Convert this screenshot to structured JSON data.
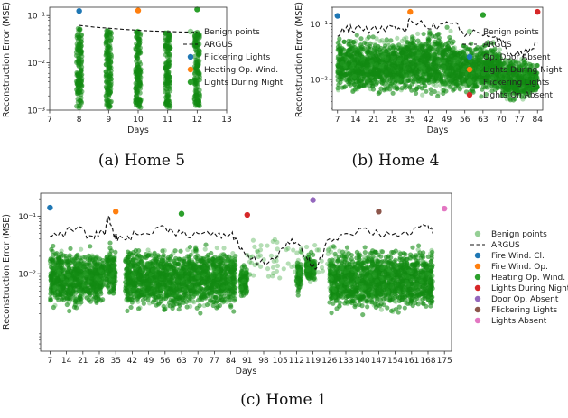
{
  "figure": {
    "colors": {
      "benign": "#2ca02c",
      "benign_dark": "#138a13",
      "argus": "#111111",
      "blue": "#1f77b4",
      "orange": "#ff7f0e",
      "green": "#2ca02c",
      "red": "#d62728",
      "purple": "#9467bd",
      "brown": "#8c564b",
      "pink": "#e377c2"
    }
  },
  "chart_data": [
    {
      "type": "scatter",
      "caption": "(a) Home 5",
      "xlabel": "Days",
      "ylabel": "Reconstruction Error (MSE)",
      "yscale": "log",
      "xlim": [
        7,
        13
      ],
      "ylim": [
        0.001,
        0.15
      ],
      "xticks": [
        7,
        8,
        9,
        10,
        11,
        12,
        13
      ],
      "yticks": [
        {
          "value": 0.1,
          "label": "10⁻¹"
        },
        {
          "value": 0.01,
          "label": "10⁻²"
        },
        {
          "value": 0.001,
          "label": "10⁻³"
        }
      ],
      "benign_bands": [
        {
          "x": 8,
          "ymin": 0.0011,
          "ymax": 0.055
        },
        {
          "x": 9,
          "ymin": 0.0011,
          "ymax": 0.05
        },
        {
          "x": 10,
          "ymin": 0.0011,
          "ymax": 0.047
        },
        {
          "x": 11,
          "ymin": 0.0011,
          "ymax": 0.045
        },
        {
          "x": 12,
          "ymin": 0.0011,
          "ymax": 0.045
        }
      ],
      "argus": {
        "x": [
          8,
          8.5,
          9,
          9.5,
          10,
          10.5,
          11,
          11.5,
          12
        ],
        "y": [
          0.062,
          0.057,
          0.054,
          0.051,
          0.049,
          0.047,
          0.046,
          0.045,
          0.045
        ]
      },
      "anomalies": [
        {
          "name": "Flickering Lights",
          "color": "blue",
          "x": 8,
          "y": 0.125
        },
        {
          "name": "Heating Op. Wind.",
          "color": "orange",
          "x": 10,
          "y": 0.128
        },
        {
          "name": "Lights During Night",
          "color": "green",
          "x": 12,
          "y": 0.135
        }
      ],
      "legend": [
        {
          "label": "Benign points",
          "kind": "benign"
        },
        {
          "label": "ARGUS",
          "kind": "dash"
        },
        {
          "label": "Flickering Lights",
          "kind": "dot",
          "color": "blue"
        },
        {
          "label": "Heating Op. Wind.",
          "kind": "dot",
          "color": "orange"
        },
        {
          "label": "Lights During Night",
          "kind": "dot",
          "color": "green"
        }
      ]
    },
    {
      "type": "scatter",
      "caption": "(b) Home 4",
      "xlabel": "Days",
      "ylabel": "Reconstruction Error (MSE)",
      "yscale": "log",
      "xlim": [
        5,
        86
      ],
      "ylim": [
        0.0028,
        0.2
      ],
      "xticks": [
        7,
        14,
        21,
        28,
        35,
        42,
        49,
        56,
        63,
        70,
        77,
        84
      ],
      "yticks": [
        {
          "value": 0.1,
          "label": "10⁻¹"
        },
        {
          "value": 0.01,
          "label": "10⁻²"
        }
      ],
      "density_segments": [
        {
          "x0": 7,
          "x1": 33,
          "lo": 0.0045,
          "hi": 0.07
        },
        {
          "x0": 33,
          "x1": 52,
          "lo": 0.004,
          "hi": 0.095
        },
        {
          "x0": 52,
          "x1": 70,
          "lo": 0.0045,
          "hi": 0.055
        },
        {
          "x0": 70,
          "x1": 84,
          "lo": 0.0035,
          "hi": 0.028
        }
      ],
      "argus_knots": {
        "x": [
          7,
          10,
          14,
          20,
          28,
          33,
          35,
          40,
          46,
          52,
          56,
          60,
          66,
          70,
          73,
          77,
          81,
          84
        ],
        "y": [
          0.06,
          0.08,
          0.085,
          0.08,
          0.09,
          0.07,
          0.12,
          0.1,
          0.09,
          0.1,
          0.06,
          0.075,
          0.06,
          0.05,
          0.03,
          0.028,
          0.035,
          0.045
        ]
      },
      "anomalies": [
        {
          "name": "Op. Door Absent",
          "color": "blue",
          "x": 7,
          "y": 0.14
        },
        {
          "name": "Lights During Night",
          "color": "orange",
          "x": 35,
          "y": 0.165
        },
        {
          "name": "Flickering Lights",
          "color": "green",
          "x": 63,
          "y": 0.145
        },
        {
          "name": "Lights On Absent",
          "color": "red",
          "x": 84,
          "y": 0.165
        }
      ],
      "legend": [
        {
          "label": "Benign points",
          "kind": "benign"
        },
        {
          "label": "ARGUS",
          "kind": "dash"
        },
        {
          "label": "Op. Door Absent",
          "kind": "dot",
          "color": "blue"
        },
        {
          "label": "Lights During Night",
          "kind": "dot",
          "color": "orange"
        },
        {
          "label": "Flickering Lights",
          "kind": "dot",
          "color": "green"
        },
        {
          "label": "Lights On Absent",
          "kind": "dot",
          "color": "red"
        }
      ]
    },
    {
      "type": "scatter",
      "caption": "(c) Home 1",
      "xlabel": "Days",
      "ylabel": "Reconstruction Error (MSE)",
      "yscale": "log",
      "xlim": [
        3,
        178
      ],
      "ylim": [
        0.00045,
        0.25
      ],
      "xticks": [
        7,
        14,
        21,
        28,
        35,
        42,
        49,
        56,
        63,
        70,
        77,
        84,
        91,
        98,
        105,
        112,
        119,
        126,
        133,
        140,
        147,
        154,
        161,
        168,
        175
      ],
      "yticks": [
        {
          "value": 0.1,
          "label": "10⁻¹"
        },
        {
          "value": 0.01,
          "label": "10⁻²"
        }
      ],
      "density_segments": [
        {
          "x0": 7,
          "x1": 30,
          "lo": 0.002,
          "hi": 0.035
        },
        {
          "x0": 31,
          "x1": 35,
          "lo": 0.003,
          "hi": 0.04
        },
        {
          "x0": 39,
          "x1": 86,
          "lo": 0.0018,
          "hi": 0.038
        },
        {
          "x0": 88,
          "x1": 91,
          "lo": 0.003,
          "hi": 0.02
        },
        {
          "x0": 112,
          "x1": 114,
          "lo": 0.004,
          "hi": 0.02
        },
        {
          "x0": 116,
          "x1": 120,
          "lo": 0.006,
          "hi": 0.025
        },
        {
          "x0": 126,
          "x1": 170,
          "lo": 0.0018,
          "hi": 0.035
        }
      ],
      "sparse_region": {
        "x0": 91,
        "x1": 126,
        "lo": 0.008,
        "hi": 0.04
      },
      "argus_knots": {
        "x": [
          7,
          12,
          18,
          25,
          30,
          32,
          34,
          36,
          40,
          48,
          56,
          63,
          70,
          78,
          84,
          86,
          90,
          96,
          104,
          110,
          116,
          120,
          126,
          133,
          140,
          147,
          154,
          161,
          168,
          170
        ],
        "y": [
          0.045,
          0.05,
          0.06,
          0.045,
          0.05,
          0.1,
          0.05,
          0.04,
          0.045,
          0.05,
          0.065,
          0.05,
          0.05,
          0.045,
          0.05,
          0.04,
          0.022,
          0.015,
          0.02,
          0.04,
          0.02,
          0.012,
          0.04,
          0.05,
          0.06,
          0.05,
          0.05,
          0.05,
          0.07,
          0.05
        ]
      },
      "anomalies": [
        {
          "name": "Fire Wind. Cl.",
          "color": "blue",
          "x": 7,
          "y": 0.14
        },
        {
          "name": "Fire Wind. Op.",
          "color": "orange",
          "x": 35,
          "y": 0.12
        },
        {
          "name": "Heating Op. Wind.",
          "color": "green",
          "x": 63,
          "y": 0.11
        },
        {
          "name": "Lights During Night",
          "color": "red",
          "x": 91,
          "y": 0.105
        },
        {
          "name": "Door Op. Absent",
          "color": "purple",
          "x": 119,
          "y": 0.19
        },
        {
          "name": "Flickering Lights",
          "color": "brown",
          "x": 147,
          "y": 0.12
        },
        {
          "name": "Lights Absent",
          "color": "pink",
          "x": 175,
          "y": 0.135
        }
      ],
      "legend": [
        {
          "label": "Benign points",
          "kind": "benign"
        },
        {
          "label": "ARGUS",
          "kind": "dash"
        },
        {
          "label": "Fire Wind. Cl.",
          "kind": "dot",
          "color": "blue"
        },
        {
          "label": "Fire Wind. Op.",
          "kind": "dot",
          "color": "orange"
        },
        {
          "label": "Heating Op. Wind.",
          "kind": "dot",
          "color": "green"
        },
        {
          "label": "Lights During Night",
          "kind": "dot",
          "color": "red"
        },
        {
          "label": "Door Op. Absent",
          "kind": "dot",
          "color": "purple"
        },
        {
          "label": "Flickering Lights",
          "kind": "dot",
          "color": "brown"
        },
        {
          "label": "Lights Absent",
          "kind": "dot",
          "color": "pink"
        }
      ]
    }
  ]
}
